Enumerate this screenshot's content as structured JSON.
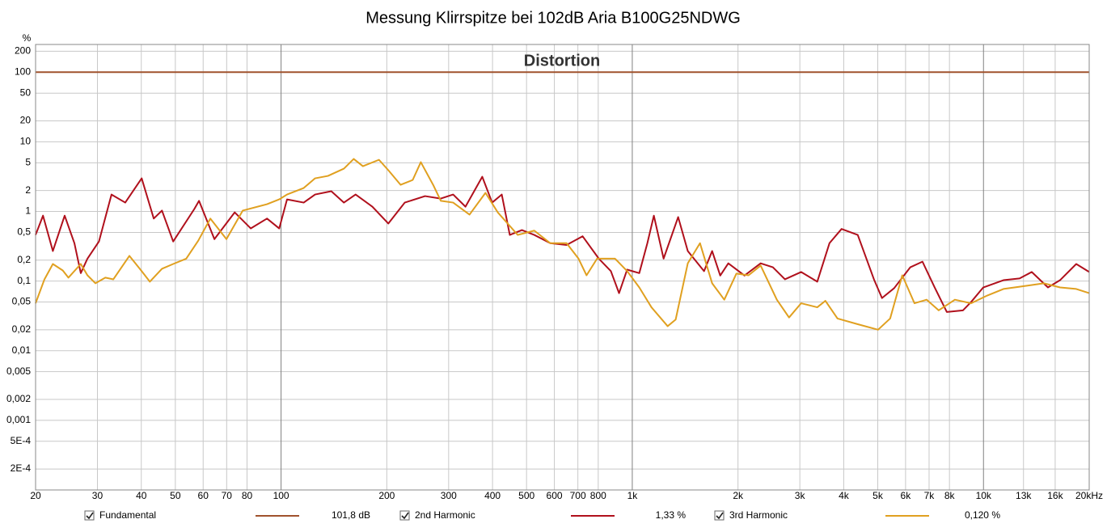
{
  "chart_data": {
    "type": "line",
    "title": "Messung Klirrspitze bei 102dB Aria B100G25NDWG",
    "annotation": "Distortion",
    "y_label": "%",
    "log_x": true,
    "log_y": true,
    "grid": true,
    "xlim": [
      20,
      20000
    ],
    "ylim": [
      0.0001,
      250
    ],
    "xticks": [
      20,
      30,
      40,
      50,
      60,
      70,
      80,
      100,
      200,
      300,
      400,
      500,
      600,
      700,
      800,
      {
        "value": 1000,
        "label": "1k"
      },
      {
        "value": 2000,
        "label": "2k"
      },
      {
        "value": 3000,
        "label": "3k"
      },
      {
        "value": 4000,
        "label": "4k"
      },
      {
        "value": 5000,
        "label": "5k"
      },
      {
        "value": 6000,
        "label": "6k"
      },
      {
        "value": 7000,
        "label": "7k"
      },
      {
        "value": 8000,
        "label": "8k"
      },
      {
        "value": 10000,
        "label": "10k"
      },
      {
        "value": 13000,
        "label": "13k"
      },
      {
        "value": 16000,
        "label": "16k"
      },
      {
        "value": 20000,
        "label": "20kHz"
      }
    ],
    "yticks": [
      200,
      100,
      50,
      20,
      10,
      5,
      2,
      1,
      {
        "value": 0.5,
        "label": "0,5"
      },
      {
        "value": 0.2,
        "label": "0,2"
      },
      {
        "value": 0.1,
        "label": "0,1"
      },
      {
        "value": 0.05,
        "label": "0,05"
      },
      {
        "value": 0.02,
        "label": "0,02"
      },
      {
        "value": 0.01,
        "label": "0,01"
      },
      {
        "value": 0.005,
        "label": "0,005"
      },
      {
        "value": 0.002,
        "label": "0,002"
      },
      {
        "value": 0.001,
        "label": "0,001"
      },
      {
        "value": 0.0005,
        "label": "5E-4"
      },
      {
        "value": 0.0002,
        "label": "2E-4"
      }
    ],
    "series": [
      {
        "name": "Fundamental",
        "color": "#a0522d",
        "readout": "101,8 dB",
        "x": [
          20,
          20000
        ],
        "values": [
          100,
          100
        ]
      },
      {
        "name": "2nd Harmonic",
        "color": "#b0101c",
        "readout": "1,33 %",
        "x": [
          20,
          21,
          22.4,
          24.2,
          25.8,
          26.9,
          28.1,
          30.3,
          32.9,
          36,
          40.1,
          43.4,
          45.8,
          49.3,
          56.6,
          58.4,
          64.6,
          73.8,
          82,
          91.2,
          98.8,
          104,
          116,
          125,
          139,
          151,
          163,
          182,
          202,
          225,
          257,
          285,
          309,
          335,
          374,
          399,
          425,
          448,
          485,
          526,
          584,
          650,
          722,
          803,
          869,
          917,
          967,
          1047,
          1104,
          1152,
          1228,
          1351,
          1439,
          1601,
          1688,
          1780,
          1877,
          2087,
          2320,
          2514,
          2721,
          3025,
          3363,
          3643,
          3944,
          4385,
          4876,
          5141,
          5567,
          6190,
          6703,
          7262,
          7862,
          8743,
          9219,
          9985,
          11400,
          12670,
          13720,
          15260,
          16520,
          18370,
          20000
        ],
        "values": [
          0.46,
          0.87,
          0.27,
          0.87,
          0.35,
          0.13,
          0.21,
          0.37,
          1.75,
          1.34,
          2.99,
          0.79,
          1.03,
          0.37,
          1.08,
          1.42,
          0.4,
          0.97,
          0.57,
          0.79,
          0.57,
          1.49,
          1.34,
          1.75,
          1.95,
          1.34,
          1.75,
          1.17,
          0.67,
          1.34,
          1.66,
          1.53,
          1.75,
          1.17,
          3.15,
          1.34,
          1.75,
          0.46,
          0.54,
          0.46,
          0.35,
          0.33,
          0.44,
          0.21,
          0.139,
          0.067,
          0.146,
          0.13,
          0.35,
          0.87,
          0.21,
          0.83,
          0.27,
          0.139,
          0.27,
          0.12,
          0.18,
          0.12,
          0.18,
          0.158,
          0.106,
          0.135,
          0.098,
          0.35,
          0.56,
          0.46,
          0.106,
          0.057,
          0.079,
          0.158,
          0.19,
          0.081,
          0.036,
          0.038,
          0.05,
          0.081,
          0.103,
          0.109,
          0.135,
          0.081,
          0.103,
          0.176,
          0.135
        ]
      },
      {
        "name": "3rd Harmonic",
        "color": "#e0a020",
        "readout": "0,120 %",
        "x": [
          20,
          21.2,
          22.4,
          23.9,
          24.8,
          26.9,
          28.1,
          29.6,
          31.6,
          33.3,
          37,
          40.1,
          42.3,
          45.8,
          49.3,
          53.7,
          58.1,
          62.9,
          69.9,
          77.8,
          91.2,
          98.8,
          104,
          116,
          125,
          136,
          151,
          161,
          171,
          190,
          202,
          219,
          237,
          250,
          271,
          285,
          309,
          344,
          382,
          414,
          472,
          526,
          584,
          650,
          703,
          741,
          794,
          893,
          967,
          1047,
          1134,
          1261,
          1329,
          1439,
          1559,
          1688,
          1828,
          1979,
          2143,
          2320,
          2580,
          2795,
          3025,
          3363,
          3547,
          3840,
          4385,
          5010,
          5423,
          5872,
          6361,
          6887,
          7456,
          8290,
          9219,
          10250,
          11400,
          13360,
          14860,
          16520,
          18370,
          20000
        ],
        "values": [
          0.048,
          0.106,
          0.176,
          0.142,
          0.112,
          0.176,
          0.121,
          0.093,
          0.112,
          0.106,
          0.23,
          0.139,
          0.098,
          0.15,
          0.176,
          0.21,
          0.38,
          0.79,
          0.4,
          1.03,
          1.27,
          1.49,
          1.75,
          2.17,
          2.99,
          3.24,
          4.12,
          5.68,
          4.46,
          5.52,
          3.91,
          2.41,
          2.83,
          5.1,
          2.41,
          1.42,
          1.34,
          0.9,
          1.85,
          0.97,
          0.46,
          0.53,
          0.35,
          0.35,
          0.21,
          0.121,
          0.21,
          0.21,
          0.139,
          0.081,
          0.042,
          0.0225,
          0.028,
          0.18,
          0.35,
          0.093,
          0.054,
          0.128,
          0.121,
          0.167,
          0.054,
          0.03,
          0.048,
          0.042,
          0.052,
          0.029,
          0.024,
          0.02,
          0.029,
          0.121,
          0.048,
          0.054,
          0.038,
          0.054,
          0.048,
          0.062,
          0.077,
          0.086,
          0.093,
          0.081,
          0.077,
          0.067
        ]
      }
    ]
  }
}
